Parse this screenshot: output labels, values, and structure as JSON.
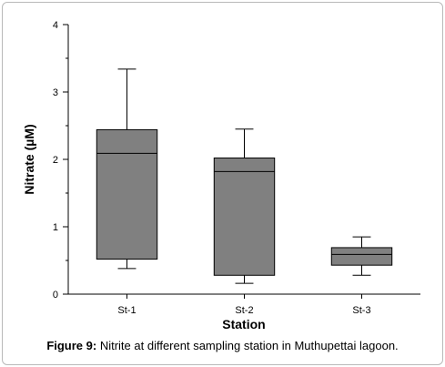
{
  "chart_data": {
    "type": "boxplot",
    "categories": [
      "St-1",
      "St-2",
      "St-3"
    ],
    "boxes": [
      {
        "category": "St-1",
        "min": 0.38,
        "q1": 0.52,
        "median": 2.09,
        "q3": 2.44,
        "max": 3.34
      },
      {
        "category": "St-2",
        "min": 0.16,
        "q1": 0.28,
        "median": 1.82,
        "q3": 2.02,
        "max": 2.45
      },
      {
        "category": "St-3",
        "min": 0.28,
        "q1": 0.43,
        "median": 0.59,
        "q3": 0.69,
        "max": 0.85
      }
    ],
    "xlabel": "Station",
    "ylabel": "Nitrate (µM)",
    "ylim": [
      0,
      4
    ],
    "yticks": [
      "0",
      "1",
      "2",
      "3",
      "4"
    ],
    "box_color": "#808080",
    "grid": false
  },
  "caption": {
    "label": "Figure 9:",
    "text": " Nitrite at different sampling station in Muthupettai lagoon."
  }
}
